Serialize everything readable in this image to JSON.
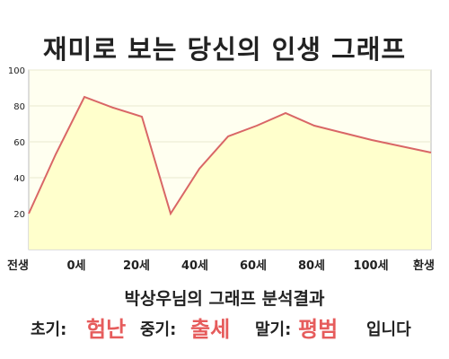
{
  "title": "재미로 보는 당신의 인생 그래프",
  "chart_data": {
    "type": "area",
    "x_labels": [
      "전생",
      "0세",
      "20세",
      "40세",
      "60세",
      "80세",
      "100세",
      "환생"
    ],
    "y_ticks": [
      20,
      40,
      60,
      80,
      100
    ],
    "ylim": [
      0,
      100
    ],
    "points": [
      {
        "x": "전생",
        "y": 20
      },
      {
        "x": "",
        "y": 53
      },
      {
        "x": "0세",
        "y": 85
      },
      {
        "x": "",
        "y": 79
      },
      {
        "x": "20세",
        "y": 74
      },
      {
        "x": "",
        "y": 20
      },
      {
        "x": "40세",
        "y": 45
      },
      {
        "x": "",
        "y": 63
      },
      {
        "x": "60세",
        "y": 69
      },
      {
        "x": "",
        "y": 76
      },
      {
        "x": "80세",
        "y": 69
      },
      {
        "x": "",
        "y": 65
      },
      {
        "x": "100세",
        "y": 61
      },
      {
        "x": "환생",
        "y": 54
      }
    ],
    "grid": true,
    "colors": {
      "line": "#d96666",
      "fill": "#ffffcc",
      "plot_bg": "#fffff0",
      "grid": "#e8e8d0"
    }
  },
  "result": {
    "subtitle": "박상우님의 그래프 분석결과",
    "early_label": "초기:",
    "early_value": "험난",
    "middle_label": "중기:",
    "middle_value": "출세",
    "late_label": "말기:",
    "late_value": "평범",
    "ending": "입니다",
    "highlight_color": "#e65c5c"
  }
}
